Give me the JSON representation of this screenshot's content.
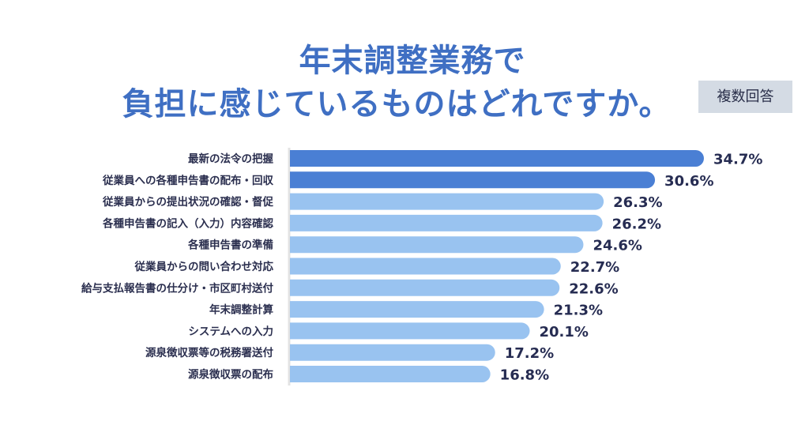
{
  "chart_data": {
    "type": "bar",
    "orientation": "horizontal",
    "title_lines": [
      "年末調整業務で",
      "負担に感じているものはどれですか。"
    ],
    "badge": "複数回答",
    "categories": [
      "最新の法令の把握",
      "従業員への各種申告書の配布・回収",
      "従業員からの提出状況の確認・督促",
      "各種申告書の記入（入力）内容確認",
      "各種申告書の準備",
      "従業員からの問い合わせ対応",
      "給与支払報告書の仕分け・市区町村送付",
      "年末調整計算",
      "システムへの入力",
      "源泉徴収票等の税務署送付",
      "源泉徴収票の配布"
    ],
    "values": [
      34.7,
      30.6,
      26.3,
      26.2,
      24.6,
      22.7,
      22.6,
      21.3,
      20.1,
      17.2,
      16.8
    ],
    "value_labels": [
      "34.7%",
      "30.6%",
      "26.3%",
      "26.2%",
      "24.6%",
      "22.7%",
      "22.6%",
      "21.3%",
      "20.1%",
      "17.2%",
      "16.8%"
    ],
    "unit": "%",
    "highlight_count": 2,
    "colors": {
      "highlight": "#4a7fd4",
      "normal": "#99c3f0",
      "title": "#3f6fc3",
      "axis": "#e3e3e3"
    },
    "grid": false,
    "legend": "none"
  }
}
